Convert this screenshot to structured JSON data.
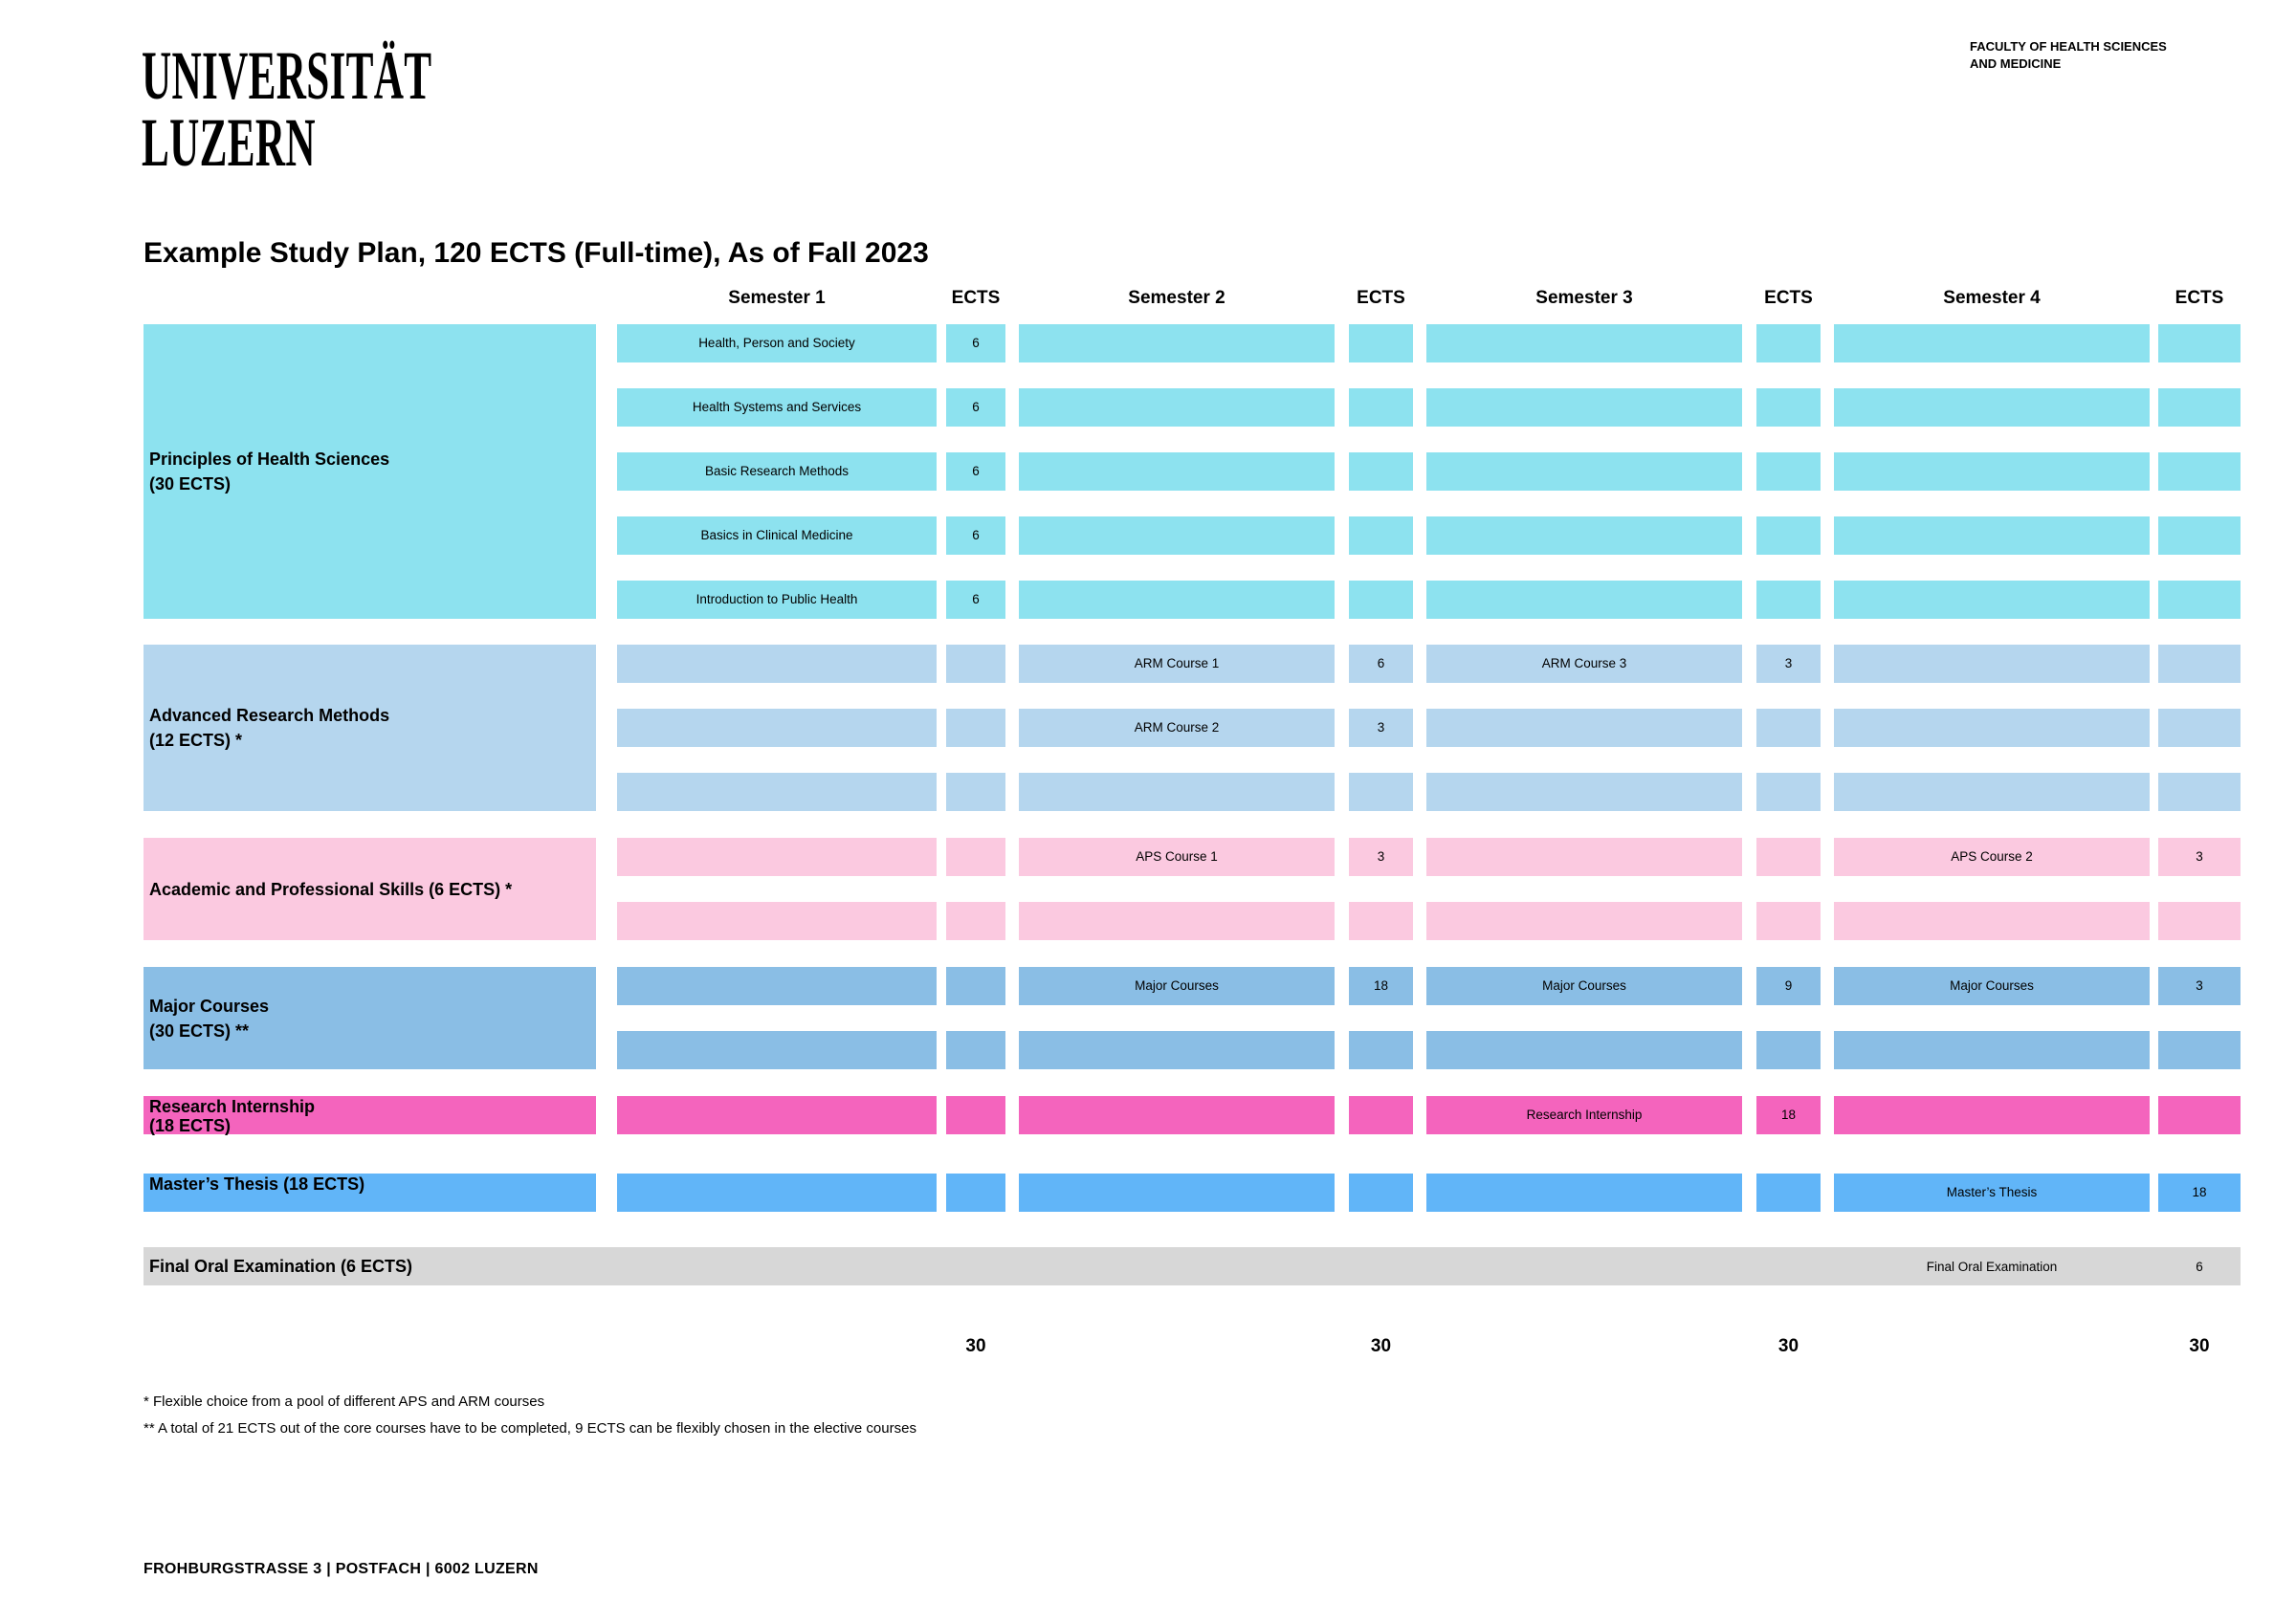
{
  "page": {
    "logo": {
      "line1": "UNIVERSITÄT",
      "line2": "LUZERN"
    },
    "faculty": {
      "line1": "FACULTY OF HEALTH SCIENCES",
      "line2": "AND MEDICINE"
    },
    "title": "Example Study Plan, 120 ECTS (Full-time), As of Fall 2023",
    "footnotes": [
      "* Flexible choice from a pool of different APS and ARM courses",
      "** A total of 21 ECTS out of the core courses have to be completed, 9 ECTS can be flexibly chosen in the elective courses"
    ],
    "footer": "FROHBURGSTRASSE 3 | POSTFACH | 6002 LUZERN"
  },
  "table": {
    "column_headers": [
      "Semester 1",
      "ECTS",
      "Semester 2",
      "ECTS",
      "Semester 3",
      "ECTS",
      "Semester 4",
      "ECTS"
    ],
    "sections": [
      {
        "id": "principles",
        "label": "Principles of Health Sciences",
        "sublabel": "(30 ECTS)",
        "color": "#8DE2EF",
        "valign": "center",
        "rows": [
          [
            {
              "semester": 1,
              "label": "Health, Person and Society",
              "ects": "6"
            }
          ],
          [
            {
              "semester": 1,
              "label": "Health Systems and Services",
              "ects": "6"
            }
          ],
          [
            {
              "semester": 1,
              "label": "Basic Research Methods",
              "ects": "6"
            }
          ],
          [
            {
              "semester": 1,
              "label": "Basics in Clinical Medicine",
              "ects": "6"
            }
          ],
          [
            {
              "semester": 1,
              "label": "Introduction to Public Health",
              "ects": "6"
            }
          ]
        ]
      },
      {
        "id": "arm",
        "label": "Advanced Research Methods",
        "sublabel": "(12 ECTS) *",
        "color": "#B5D6EE",
        "valign": "center",
        "rows": [
          [
            {
              "semester": 2,
              "label": "ARM Course 1",
              "ects": "6"
            },
            {
              "semester": 3,
              "label": "ARM Course 3",
              "ects": "3"
            }
          ],
          [
            {
              "semester": 2,
              "label": "ARM Course 2",
              "ects": "3"
            }
          ],
          []
        ]
      },
      {
        "id": "aps",
        "label": "Academic and Professional Skills (6 ECTS) *",
        "sublabel": "",
        "color": "#FBC9E0",
        "valign": "center",
        "rows": [
          [
            {
              "semester": 2,
              "label": "APS Course 1",
              "ects": "3"
            },
            {
              "semester": 4,
              "label": "APS Course 2",
              "ects": "3"
            }
          ],
          []
        ]
      },
      {
        "id": "major",
        "label": "Major Courses",
        "sublabel": "(30 ECTS) **",
        "color": "#8ABEE5",
        "valign": "center",
        "rows": [
          [
            {
              "semester": 2,
              "label": "Major Courses",
              "ects": "18"
            },
            {
              "semester": 3,
              "label": "Major Courses",
              "ects": "9"
            },
            {
              "semester": 4,
              "label": "Major Courses",
              "ects": "3"
            }
          ],
          []
        ]
      },
      {
        "id": "internship",
        "label": "Research Internship",
        "sublabel": "(18 ECTS)",
        "color": "#F464BD",
        "valign": "top",
        "rows": [
          [
            {
              "semester": 3,
              "label": "Research Internship",
              "ects": "18"
            }
          ]
        ]
      },
      {
        "id": "thesis",
        "label": "Master’s Thesis (18 ECTS)",
        "sublabel": "",
        "color": "#61B5F8",
        "valign": "top",
        "rows": [
          [
            {
              "semester": 4,
              "label": "Master’s Thesis",
              "ects": "18"
            }
          ]
        ]
      }
    ],
    "final_exam": {
      "category_label": "Final Oral Examination (6 ECTS)",
      "course_label": "Final Oral Examination",
      "ects": "6",
      "semester": 4,
      "color": "#D7D7D7"
    },
    "semester_totals": [
      "30",
      "30",
      "30",
      "30"
    ]
  }
}
